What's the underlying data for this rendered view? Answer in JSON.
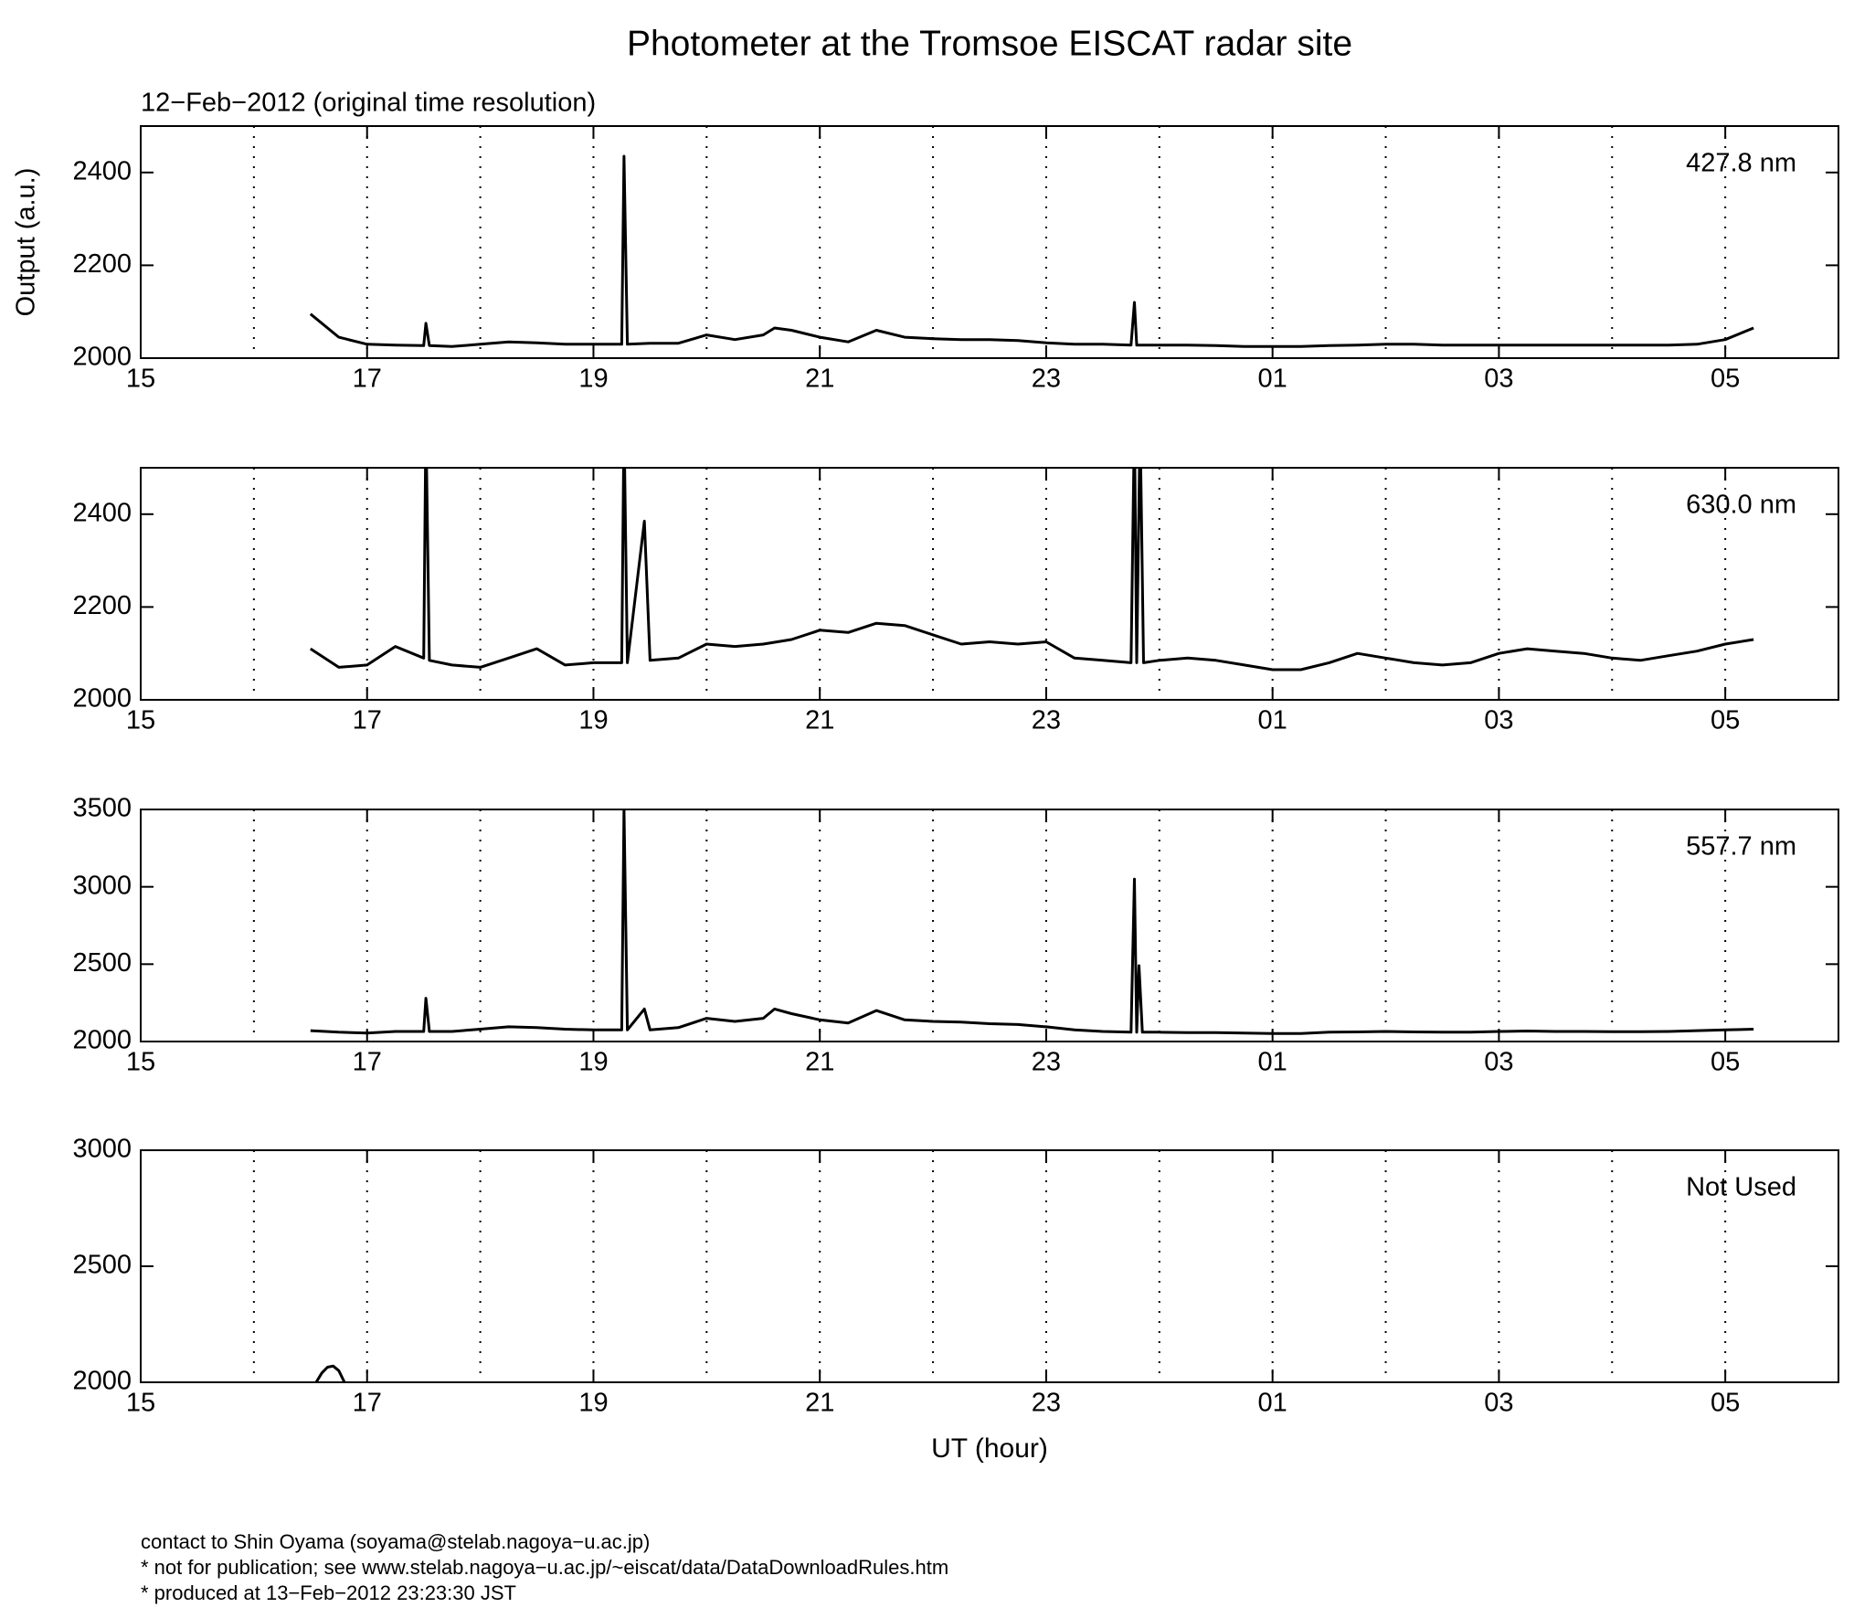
{
  "header": {
    "title": "Photometer at the Tromsoe EISCAT radar site",
    "subtitle": "12−Feb−2012 (original time resolution)"
  },
  "footer": [
    "contact to Shin Oyama (soyama@stelab.nagoya−u.ac.jp)",
    "* not for publication; see www.stelab.nagoya−u.ac.jp/~eiscat/data/DataDownloadRules.htm",
    "* produced at 13−Feb−2012 23:23:30 JST"
  ],
  "chart_data": [
    {
      "type": "line",
      "label": "427.8 nm",
      "ylabel": "Output (a.u.)",
      "color": "#000000",
      "grid": true,
      "xlim": [
        15,
        30
      ],
      "xticks": [
        15,
        17,
        19,
        21,
        23,
        {
          "value": 25,
          "label": "01"
        },
        {
          "value": 27,
          "label": "03"
        },
        {
          "value": 29,
          "label": "05"
        }
      ],
      "xminorticks": [
        16,
        18,
        20,
        22,
        24,
        26,
        28
      ],
      "ylim": [
        2000,
        2500
      ],
      "yticks": [
        2000,
        2200,
        2400
      ],
      "x": [
        16.5,
        16.75,
        17,
        17.25,
        17.5,
        17.52,
        17.55,
        17.75,
        18,
        18.25,
        18.5,
        18.75,
        19,
        19.25,
        19.27,
        19.3,
        19.5,
        19.75,
        20,
        20.25,
        20.5,
        20.6,
        20.75,
        21,
        21.25,
        21.5,
        21.75,
        22,
        22.25,
        22.5,
        22.75,
        23,
        23.25,
        23.5,
        23.75,
        23.78,
        23.8,
        24,
        24.25,
        24.5,
        24.75,
        25,
        25.25,
        25.5,
        25.75,
        26,
        26.25,
        26.5,
        26.75,
        27,
        27.25,
        27.5,
        27.75,
        28,
        28.25,
        28.5,
        28.75,
        29,
        29.25
      ],
      "values": [
        2095,
        2045,
        2030,
        2028,
        2027,
        2075,
        2027,
        2025,
        2030,
        2035,
        2033,
        2030,
        2030,
        2030,
        2435,
        2030,
        2032,
        2032,
        2050,
        2040,
        2050,
        2065,
        2060,
        2045,
        2035,
        2060,
        2045,
        2042,
        2040,
        2040,
        2038,
        2033,
        2030,
        2030,
        2028,
        2120,
        2028,
        2028,
        2028,
        2027,
        2025,
        2025,
        2025,
        2027,
        2028,
        2030,
        2030,
        2028,
        2028,
        2028,
        2028,
        2028,
        2028,
        2028,
        2028,
        2028,
        2030,
        2040,
        2065
      ]
    },
    {
      "type": "line",
      "label": "630.0 nm",
      "color": "#000000",
      "grid": true,
      "xlim": [
        15,
        30
      ],
      "xticks": [
        15,
        17,
        19,
        21,
        23,
        {
          "value": 25,
          "label": "01"
        },
        {
          "value": 27,
          "label": "03"
        },
        {
          "value": 29,
          "label": "05"
        }
      ],
      "xminorticks": [
        16,
        18,
        20,
        22,
        24,
        26,
        28
      ],
      "ylim": [
        2000,
        2500
      ],
      "yticks": [
        2000,
        2200,
        2400
      ],
      "x": [
        16.5,
        16.75,
        17,
        17.25,
        17.5,
        17.52,
        17.55,
        17.75,
        18,
        18.25,
        18.5,
        18.75,
        19,
        19.25,
        19.27,
        19.3,
        19.45,
        19.5,
        19.75,
        20,
        20.25,
        20.5,
        20.75,
        21,
        21.25,
        21.5,
        21.75,
        22,
        22.25,
        22.5,
        22.75,
        23,
        23.25,
        23.5,
        23.75,
        23.78,
        23.8,
        23.83,
        23.86,
        24,
        24.25,
        24.5,
        24.75,
        25,
        25.25,
        25.5,
        25.75,
        26,
        26.25,
        26.5,
        26.75,
        27,
        27.25,
        27.5,
        27.75,
        28,
        28.25,
        28.5,
        28.75,
        29,
        29.25
      ],
      "values": [
        2110,
        2070,
        2075,
        2115,
        2090,
        2600,
        2085,
        2075,
        2070,
        2090,
        2110,
        2075,
        2080,
        2080,
        2600,
        2080,
        2385,
        2085,
        2090,
        2120,
        2115,
        2120,
        2130,
        2150,
        2145,
        2165,
        2160,
        2140,
        2120,
        2125,
        2120,
        2125,
        2090,
        2085,
        2080,
        2600,
        2080,
        2600,
        2080,
        2085,
        2090,
        2085,
        2075,
        2065,
        2065,
        2080,
        2100,
        2090,
        2080,
        2075,
        2080,
        2100,
        2110,
        2105,
        2100,
        2090,
        2085,
        2095,
        2105,
        2120,
        2130
      ]
    },
    {
      "type": "line",
      "label": "557.7 nm",
      "color": "#000000",
      "grid": true,
      "xlim": [
        15,
        30
      ],
      "xticks": [
        15,
        17,
        19,
        21,
        23,
        {
          "value": 25,
          "label": "01"
        },
        {
          "value": 27,
          "label": "03"
        },
        {
          "value": 29,
          "label": "05"
        }
      ],
      "xminorticks": [
        16,
        18,
        20,
        22,
        24,
        26,
        28
      ],
      "ylim": [
        2000,
        3500
      ],
      "yticks": [
        2000,
        2500,
        3000,
        3500
      ],
      "x": [
        16.5,
        16.75,
        17,
        17.25,
        17.5,
        17.52,
        17.55,
        17.75,
        18,
        18.25,
        18.5,
        18.75,
        19,
        19.25,
        19.27,
        19.3,
        19.45,
        19.5,
        19.75,
        20,
        20.25,
        20.5,
        20.6,
        20.75,
        21,
        21.25,
        21.5,
        21.75,
        22,
        22.25,
        22.5,
        22.75,
        23,
        23.25,
        23.5,
        23.75,
        23.78,
        23.8,
        23.82,
        23.85,
        24,
        24.25,
        24.5,
        24.75,
        25,
        25.25,
        25.5,
        25.75,
        26,
        26.25,
        26.5,
        26.75,
        27,
        27.25,
        27.5,
        27.75,
        28,
        28.25,
        28.5,
        28.75,
        29,
        29.25
      ],
      "values": [
        2070,
        2060,
        2055,
        2065,
        2065,
        2280,
        2065,
        2065,
        2080,
        2095,
        2090,
        2080,
        2075,
        2075,
        3500,
        2075,
        2210,
        2075,
        2090,
        2150,
        2130,
        2150,
        2210,
        2180,
        2140,
        2120,
        2200,
        2140,
        2130,
        2125,
        2115,
        2110,
        2095,
        2075,
        2065,
        2060,
        3050,
        2060,
        2490,
        2060,
        2060,
        2058,
        2058,
        2055,
        2052,
        2052,
        2060,
        2062,
        2065,
        2062,
        2060,
        2060,
        2065,
        2068,
        2065,
        2065,
        2063,
        2063,
        2065,
        2070,
        2075,
        2080
      ]
    },
    {
      "type": "line",
      "label": "Not Used",
      "xlabel": "UT (hour)",
      "color": "#000000",
      "grid": true,
      "xlim": [
        15,
        30
      ],
      "xticks": [
        15,
        17,
        19,
        21,
        23,
        {
          "value": 25,
          "label": "01"
        },
        {
          "value": 27,
          "label": "03"
        },
        {
          "value": 29,
          "label": "05"
        }
      ],
      "xminorticks": [
        16,
        18,
        20,
        22,
        24,
        26,
        28
      ],
      "ylim": [
        2000,
        3000
      ],
      "yticks": [
        2000,
        2500,
        3000
      ],
      "x": [
        16.55,
        16.6,
        16.65,
        16.7,
        16.75,
        16.8
      ],
      "values": [
        2000,
        2040,
        2065,
        2070,
        2050,
        2000
      ]
    }
  ]
}
